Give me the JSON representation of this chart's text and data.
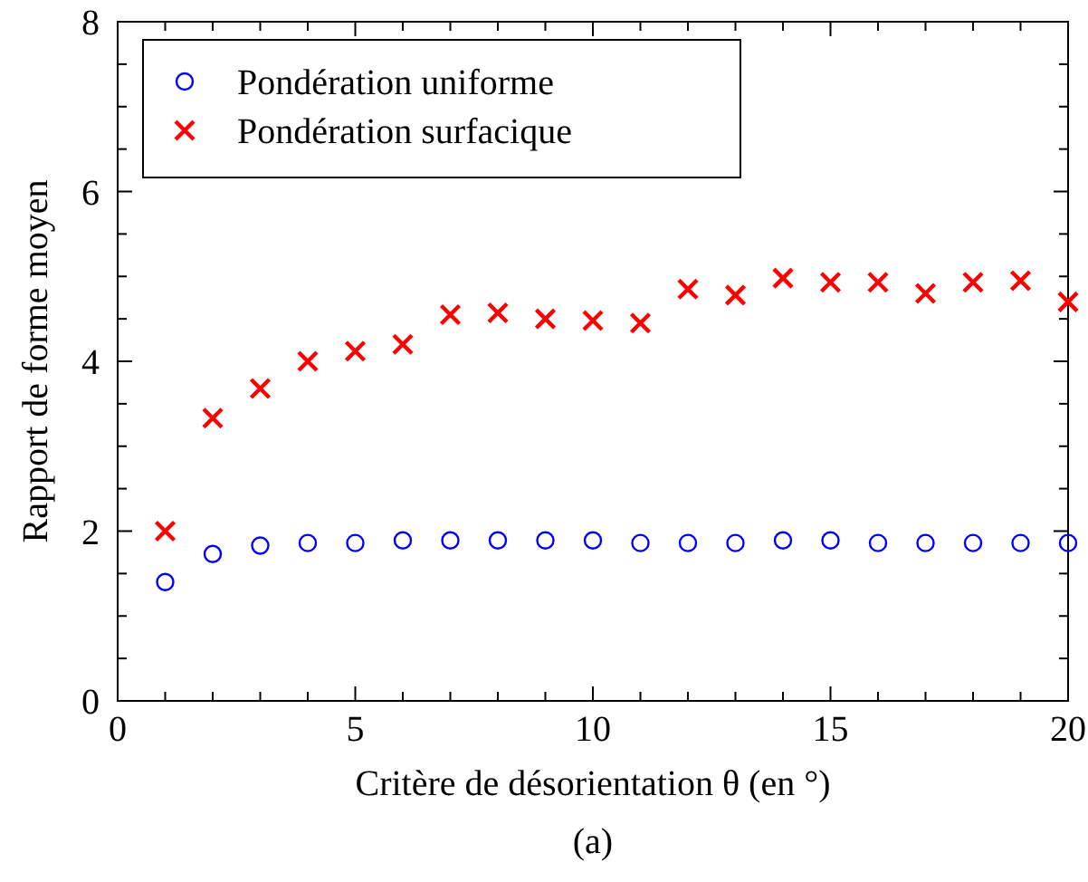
{
  "chart_data": {
    "type": "scatter",
    "xlabel": "Critère de désorientation θ (en °)",
    "ylabel": "Rapport de forme moyen",
    "annotations": [
      "(a)"
    ],
    "x": [
      1,
      2,
      3,
      4,
      5,
      6,
      7,
      8,
      9,
      10,
      11,
      12,
      13,
      14,
      15,
      16,
      17,
      18,
      19,
      20
    ],
    "series": [
      {
        "name": "Pondération uniforme",
        "color": "#0000ff",
        "marker": "circle",
        "values": [
          1.4,
          1.73,
          1.83,
          1.86,
          1.86,
          1.89,
          1.89,
          1.89,
          1.89,
          1.89,
          1.86,
          1.86,
          1.86,
          1.89,
          1.89,
          1.86,
          1.86,
          1.86,
          1.86,
          1.86
        ]
      },
      {
        "name": "Pondération surfacique",
        "color": "#ff0000",
        "marker": "cross",
        "values": [
          2.0,
          3.33,
          3.68,
          4.0,
          4.12,
          4.2,
          4.55,
          4.57,
          4.5,
          4.48,
          4.45,
          4.85,
          4.78,
          4.98,
          4.93,
          4.93,
          4.8,
          4.93,
          4.95,
          4.7
        ]
      }
    ],
    "xlim": [
      0,
      20
    ],
    "ylim": [
      0,
      8
    ],
    "xticks": [
      0,
      {
        "value": 1,
        "label": null
      },
      {
        "value": 2,
        "label": null
      },
      {
        "value": 3,
        "label": null
      },
      {
        "value": 4,
        "label": null
      },
      5,
      {
        "value": 6,
        "label": null
      },
      {
        "value": 7,
        "label": null
      },
      {
        "value": 8,
        "label": null
      },
      {
        "value": 9,
        "label": null
      },
      10,
      {
        "value": 11,
        "label": null
      },
      {
        "value": 12,
        "label": null
      },
      {
        "value": 13,
        "label": null
      },
      {
        "value": 14,
        "label": null
      },
      15,
      {
        "value": 16,
        "label": null
      },
      {
        "value": 17,
        "label": null
      },
      {
        "value": 18,
        "label": null
      },
      {
        "value": 19,
        "label": null
      },
      20
    ],
    "yticks": [
      0,
      {
        "value": 0.5,
        "label": null
      },
      {
        "value": 1,
        "label": null
      },
      {
        "value": 1.5,
        "label": null
      },
      2,
      {
        "value": 2.5,
        "label": null
      },
      {
        "value": 3,
        "label": null
      },
      {
        "value": 3.5,
        "label": null
      },
      4,
      {
        "value": 4.5,
        "label": null
      },
      {
        "value": 5,
        "label": null
      },
      {
        "value": 5.5,
        "label": null
      },
      6,
      {
        "value": 6.5,
        "label": null
      },
      {
        "value": 7,
        "label": null
      },
      {
        "value": 7.5,
        "label": null
      },
      8
    ],
    "grid": false,
    "legend": "top left"
  }
}
